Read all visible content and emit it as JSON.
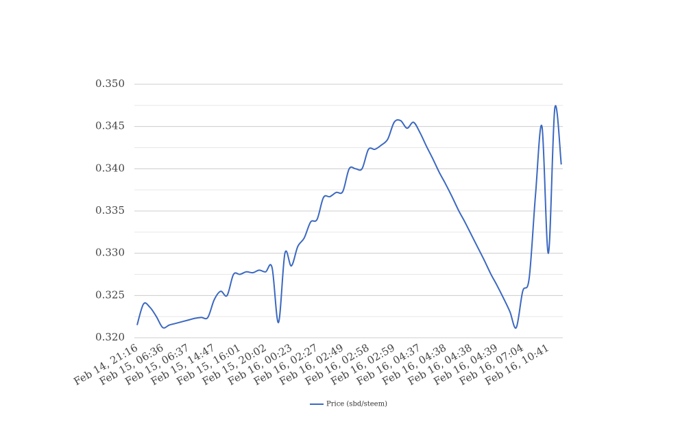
{
  "chart_data": {
    "type": "line",
    "categories": [
      "Feb 14, 21:16",
      null,
      null,
      null,
      "Feb 15, 06:36",
      null,
      null,
      null,
      "Feb 15, 06:37",
      null,
      null,
      null,
      "Feb 15, 14:47",
      null,
      null,
      null,
      "Feb 15, 16:01",
      null,
      null,
      null,
      "Feb 15, 20:02",
      null,
      null,
      null,
      "Feb 16, 00:23",
      null,
      null,
      null,
      "Feb 16, 02:27",
      null,
      null,
      null,
      "Feb 16, 02:49",
      null,
      null,
      null,
      "Feb 16, 02:58",
      null,
      null,
      null,
      "Feb 16, 02:59",
      null,
      null,
      null,
      "Feb 16, 04:37",
      null,
      null,
      null,
      "Feb 16, 04:38",
      null,
      null,
      null,
      "Feb 16, 04:38",
      null,
      null,
      null,
      "Feb 16, 04:39",
      null,
      null,
      null,
      "Feb 16, 07:04",
      null,
      null,
      null,
      "Feb 16, 10:41",
      null,
      null
    ],
    "series": [
      {
        "name": "Price (sbd/steem)",
        "color": "#3b68c0",
        "values": [
          0.3215,
          0.324,
          0.3236,
          0.3225,
          0.3212,
          0.3215,
          0.3217,
          0.3219,
          0.3221,
          0.3223,
          0.3224,
          0.3224,
          0.3245,
          0.3255,
          0.325,
          0.3275,
          0.3275,
          0.3278,
          0.3277,
          0.328,
          0.3278,
          0.3283,
          0.3218,
          0.33,
          0.3285,
          0.3308,
          0.3318,
          0.3337,
          0.334,
          0.3366,
          0.3367,
          0.3372,
          0.3373,
          0.34,
          0.34,
          0.34,
          0.3423,
          0.3423,
          0.3428,
          0.3435,
          0.3455,
          0.3457,
          0.3448,
          0.3455,
          0.3443,
          0.3427,
          0.3412,
          0.3396,
          0.3382,
          0.3367,
          0.3351,
          0.3337,
          0.3322,
          0.3307,
          0.3292,
          0.3276,
          0.3262,
          0.3247,
          0.3231,
          0.3212,
          0.3255,
          0.327,
          0.337,
          0.345,
          0.33,
          0.3472,
          0.3405
        ]
      }
    ],
    "ylim": [
      0.32,
      0.35
    ],
    "yticks": [
      {
        "value": 0.32,
        "label": "0.320"
      },
      {
        "value": 0.325,
        "label": "0.325"
      },
      {
        "value": 0.33,
        "label": "0.330"
      },
      {
        "value": 0.335,
        "label": "0.335"
      },
      {
        "value": 0.34,
        "label": "0.340"
      },
      {
        "value": 0.345,
        "label": "0.345"
      },
      {
        "value": 0.35,
        "label": "0.350"
      }
    ],
    "minor_yticks": [
      0.3225,
      0.3275,
      0.3325,
      0.3375,
      0.3425,
      0.3475
    ],
    "grid": true,
    "legend": "bottom"
  }
}
